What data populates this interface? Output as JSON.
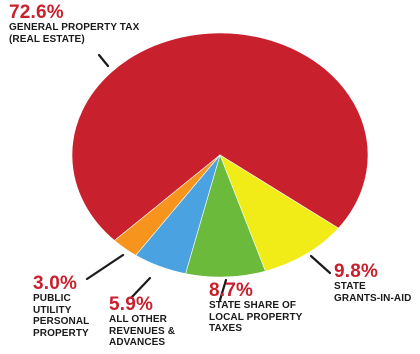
{
  "chart_data": {
    "type": "pie",
    "title": "",
    "slices": [
      {
        "value": 72.6,
        "value_label": "72.6%",
        "label": "GENERAL PROPERTY TAX\n(REAL ESTATE)",
        "color": "#c8202c"
      },
      {
        "value": 9.8,
        "value_label": "9.8%",
        "label": "STATE\nGRANTS-IN-AID",
        "color": "#f1eb17"
      },
      {
        "value": 8.7,
        "value_label": "8.7%",
        "label": "STATE SHARE OF\nLOCAL PROPERTY\nTAXES",
        "color": "#6cba3c"
      },
      {
        "value": 5.9,
        "value_label": "5.9%",
        "label": "ALL OTHER\nREVENUES &\nADVANCES",
        "color": "#4aa3e0"
      },
      {
        "value": 3.0,
        "value_label": "3.0%",
        "label": "PUBLIC\nUTILITY\nPERSONAL\nPROPERTY",
        "color": "#f7941d"
      }
    ]
  }
}
